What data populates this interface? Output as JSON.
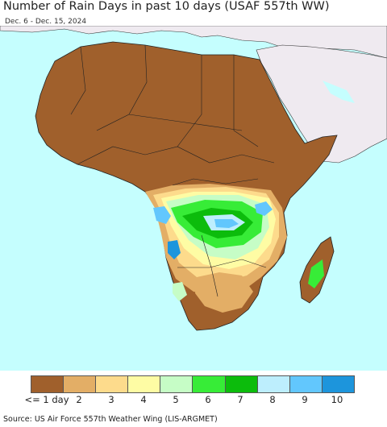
{
  "header": {
    "title": "Number of Rain Days in past 10 days (USAF 557th WW)",
    "date_range": "Dec. 6 - Dec. 15, 2024"
  },
  "legend": {
    "items": [
      {
        "label": "<= 1 day",
        "color": "#a0602c"
      },
      {
        "label": "2",
        "color": "#e3ae66"
      },
      {
        "label": "3",
        "color": "#fddb8c"
      },
      {
        "label": "4",
        "color": "#fefca4"
      },
      {
        "label": "5",
        "color": "#c6fdc6"
      },
      {
        "label": "6",
        "color": "#37ec37"
      },
      {
        "label": "7",
        "color": "#0cbc0c"
      },
      {
        "label": "8",
        "color": "#bdeefd"
      },
      {
        "label": "9",
        "color": "#62c7fd"
      },
      {
        "label": "10",
        "color": "#1d95dc"
      }
    ]
  },
  "footer": {
    "source": "Source: US Air Force 557th Weather Wing (LIS-ARGMET)"
  },
  "map": {
    "ocean_color": "#c5fefe",
    "land_outside_color": "#efeaf0",
    "border_color": "#222222"
  }
}
